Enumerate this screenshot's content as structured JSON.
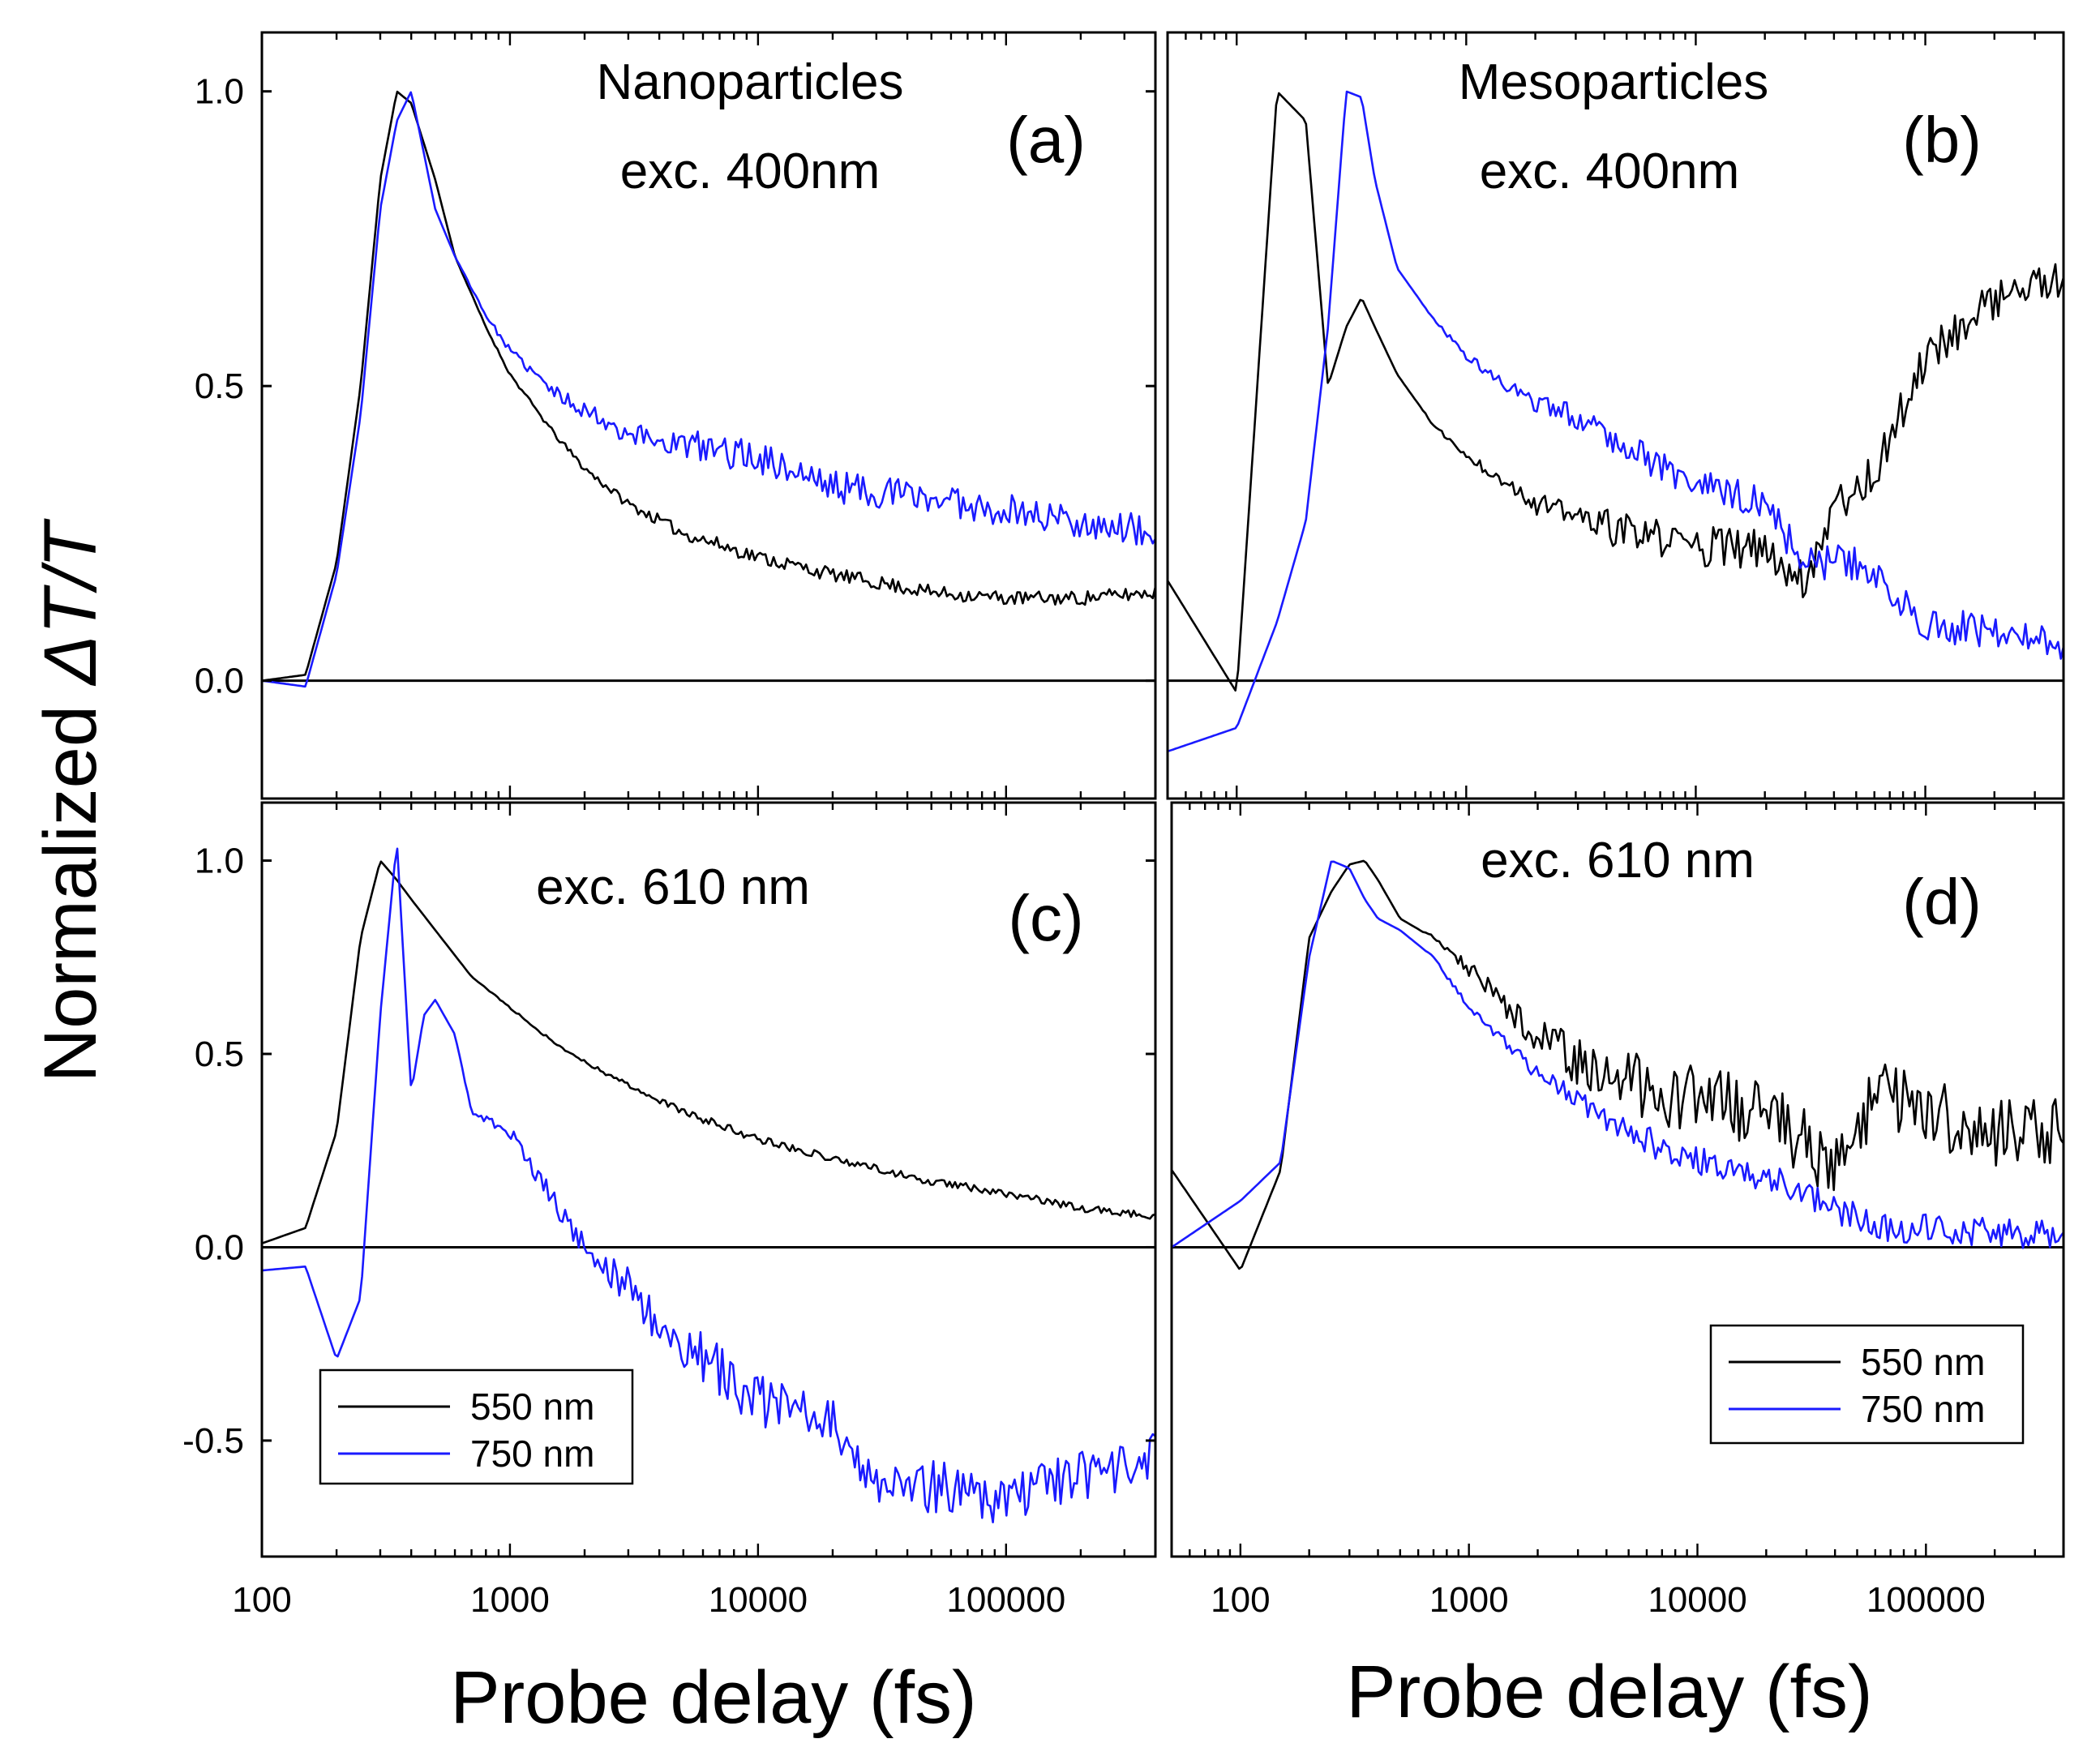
{
  "figure": {
    "ylabel_prefix": "Normalized ",
    "ylabel_symbol": "ΔT/T",
    "xlabel_left": "Probe delay (fs)",
    "xlabel_right": "Probe delay (fs)"
  },
  "colors": {
    "series_550": "#000000",
    "series_750": "#1a1aff",
    "frame": "#000000"
  },
  "legend": {
    "entries": [
      {
        "label": "550 nm",
        "color": "#000000"
      },
      {
        "label": "750 nm",
        "color": "#1a1aff"
      }
    ]
  },
  "chart_data": [
    {
      "id": "a",
      "type": "line",
      "panel_label": "(a)",
      "annotation_lines": [
        "Nanoparticles",
        "exc. 400nm"
      ],
      "xscale": "log",
      "xlim": [
        100,
        400000
      ],
      "ylim": [
        -0.2,
        1.1
      ],
      "xticks": [],
      "yticks": [
        0.0,
        0.5,
        1.0
      ],
      "ytick_labels": [
        "0.0",
        "0.5",
        "1.0"
      ],
      "show_legend": false,
      "noise": 0.0,
      "series": [
        {
          "name": "550 nm",
          "color": "#000000",
          "noise": 0.012,
          "seed": 11,
          "x": [
            100,
            150,
            200,
            250,
            300,
            350,
            400,
            500,
            600,
            800,
            1000,
            1500,
            2000,
            3000,
            5000,
            10000,
            20000,
            50000,
            100000,
            200000,
            400000
          ],
          "y": [
            0.0,
            0.01,
            0.2,
            0.5,
            0.85,
            1.0,
            0.98,
            0.85,
            0.72,
            0.6,
            0.52,
            0.42,
            0.36,
            0.3,
            0.25,
            0.21,
            0.18,
            0.15,
            0.14,
            0.14,
            0.15
          ]
        },
        {
          "name": "750 nm",
          "color": "#1a1aff",
          "noise": 0.028,
          "seed": 23,
          "x": [
            100,
            150,
            200,
            250,
            300,
            350,
            400,
            500,
            600,
            800,
            1000,
            1500,
            2000,
            3000,
            5000,
            10000,
            20000,
            50000,
            100000,
            200000,
            400000
          ],
          "y": [
            0.0,
            -0.01,
            0.18,
            0.45,
            0.8,
            0.95,
            1.0,
            0.8,
            0.72,
            0.62,
            0.56,
            0.49,
            0.46,
            0.42,
            0.4,
            0.38,
            0.33,
            0.31,
            0.29,
            0.27,
            0.25
          ]
        }
      ]
    },
    {
      "id": "b",
      "type": "line",
      "panel_label": "(b)",
      "annotation_lines": [
        "Mesoparticles",
        "exc. 400nm"
      ],
      "xscale": "log",
      "xlim": [
        50,
        400000
      ],
      "ylim": [
        -0.2,
        1.1
      ],
      "xticks": [],
      "yticks": [],
      "ytick_labels": [],
      "show_legend": false,
      "series": [
        {
          "name": "550 nm",
          "color": "#000000",
          "noise": 0.035,
          "seed": 37,
          "x": [
            50,
            100,
            150,
            200,
            250,
            300,
            350,
            400,
            500,
            700,
            1000,
            1500,
            2000,
            3000,
            5000,
            10000,
            20000,
            30000,
            40000,
            60000,
            100000,
            200000,
            400000
          ],
          "y": [
            0.17,
            -0.02,
            1.0,
            0.95,
            0.5,
            0.6,
            0.65,
            0.6,
            0.52,
            0.44,
            0.38,
            0.34,
            0.3,
            0.28,
            0.25,
            0.23,
            0.22,
            0.17,
            0.3,
            0.35,
            0.55,
            0.65,
            0.68
          ]
        },
        {
          "name": "750 nm",
          "color": "#1a1aff",
          "noise": 0.03,
          "seed": 41,
          "x": [
            50,
            100,
            150,
            200,
            250,
            300,
            350,
            400,
            500,
            700,
            1000,
            1500,
            2000,
            3000,
            5000,
            10000,
            20000,
            30000,
            50000,
            100000,
            200000,
            400000
          ],
          "y": [
            -0.12,
            -0.08,
            0.1,
            0.27,
            0.6,
            1.0,
            0.99,
            0.85,
            0.7,
            0.62,
            0.55,
            0.5,
            0.47,
            0.45,
            0.4,
            0.33,
            0.3,
            0.2,
            0.2,
            0.1,
            0.08,
            0.06
          ]
        }
      ]
    },
    {
      "id": "c",
      "type": "line",
      "panel_label": "(c)",
      "annotation_lines": [
        "exc. 610 nm"
      ],
      "xscale": "log",
      "xlim": [
        100,
        400000
      ],
      "ylim": [
        -0.8,
        1.15
      ],
      "xticks": [
        100,
        1000,
        10000,
        100000
      ],
      "xtick_labels": [
        "100",
        "1000",
        "10000",
        "100000"
      ],
      "yticks": [
        -0.5,
        0.0,
        0.5,
        1.0
      ],
      "ytick_labels": [
        "-0.5",
        "0.0",
        "0.5",
        "1.0"
      ],
      "show_legend": true,
      "series": [
        {
          "name": "550 nm",
          "color": "#000000",
          "noise": 0.01,
          "seed": 53,
          "x": [
            100,
            150,
            200,
            250,
            300,
            350,
            400,
            500,
            700,
            1000,
            1500,
            2000,
            3000,
            5000,
            10000,
            20000,
            50000,
            100000,
            200000,
            400000
          ],
          "y": [
            0.01,
            0.05,
            0.3,
            0.8,
            1.0,
            0.95,
            0.9,
            0.82,
            0.7,
            0.62,
            0.53,
            0.48,
            0.42,
            0.35,
            0.28,
            0.23,
            0.17,
            0.14,
            0.1,
            0.08
          ]
        },
        {
          "name": "750 nm",
          "color": "#1a1aff",
          "noise": 0.07,
          "seed": 67,
          "x": [
            100,
            150,
            200,
            250,
            300,
            350,
            400,
            450,
            500,
            600,
            700,
            1000,
            1500,
            2000,
            3000,
            4000,
            5000,
            7000,
            10000,
            20000,
            30000,
            50000,
            100000,
            200000,
            400000
          ],
          "y": [
            -0.06,
            -0.05,
            -0.29,
            -0.13,
            0.6,
            1.05,
            0.4,
            0.6,
            0.64,
            0.55,
            0.35,
            0.3,
            0.12,
            0.0,
            -0.1,
            -0.2,
            -0.25,
            -0.32,
            -0.4,
            -0.45,
            -0.6,
            -0.62,
            -0.65,
            -0.6,
            -0.55
          ]
        }
      ]
    },
    {
      "id": "d",
      "type": "line",
      "panel_label": "(d)",
      "annotation_lines": [
        "exc. 610 nm"
      ],
      "xscale": "log",
      "xlim": [
        50,
        400000
      ],
      "ylim": [
        -0.8,
        1.15
      ],
      "xticks": [
        100,
        1000,
        10000,
        100000
      ],
      "xtick_labels": [
        "100",
        "1000",
        "10000",
        "100000"
      ],
      "yticks": [],
      "ytick_labels": [],
      "show_legend": true,
      "series": [
        {
          "name": "550 nm",
          "color": "#000000",
          "noise": 0.09,
          "seed": 79,
          "x": [
            50,
            100,
            150,
            200,
            250,
            300,
            350,
            400,
            500,
            700,
            1000,
            1500,
            2000,
            3000,
            5000,
            10000,
            20000,
            40000,
            60000,
            100000,
            200000,
            400000
          ],
          "y": [
            0.2,
            -0.06,
            0.2,
            0.8,
            0.92,
            0.99,
            1.0,
            0.95,
            0.85,
            0.8,
            0.72,
            0.62,
            0.55,
            0.48,
            0.42,
            0.38,
            0.35,
            0.2,
            0.4,
            0.35,
            0.3,
            0.3
          ]
        },
        {
          "name": "750 nm",
          "color": "#1a1aff",
          "noise": 0.04,
          "seed": 83,
          "x": [
            50,
            100,
            150,
            200,
            250,
            300,
            350,
            400,
            500,
            700,
            1000,
            1500,
            2000,
            3000,
            5000,
            10000,
            20000,
            40000,
            60000,
            100000,
            200000,
            400000
          ],
          "y": [
            0.0,
            0.12,
            0.22,
            0.75,
            1.0,
            0.98,
            0.9,
            0.85,
            0.82,
            0.75,
            0.62,
            0.52,
            0.45,
            0.38,
            0.3,
            0.22,
            0.18,
            0.1,
            0.05,
            0.05,
            0.04,
            0.03
          ]
        }
      ]
    }
  ]
}
